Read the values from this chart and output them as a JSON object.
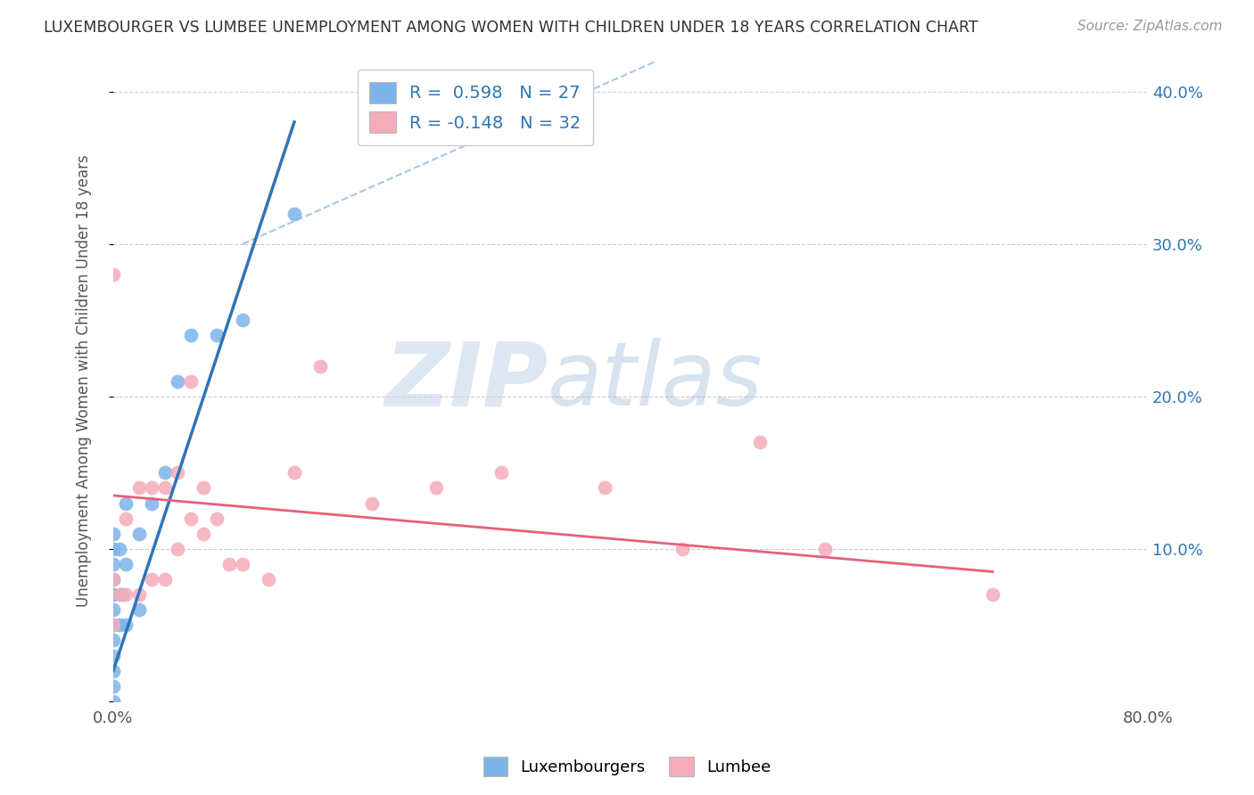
{
  "title": "LUXEMBOURGER VS LUMBEE UNEMPLOYMENT AMONG WOMEN WITH CHILDREN UNDER 18 YEARS CORRELATION CHART",
  "source": "Source: ZipAtlas.com",
  "ylabel": "Unemployment Among Women with Children Under 18 years",
  "xlabel": "",
  "legend_bottom": [
    "Luxembourgers",
    "Lumbee"
  ],
  "luxembourger_R": 0.598,
  "luxembourger_N": 27,
  "lumbee_R": -0.148,
  "lumbee_N": 32,
  "xlim": [
    0.0,
    0.8
  ],
  "ylim": [
    0.0,
    0.42
  ],
  "x_ticks": [
    0.0,
    0.1,
    0.2,
    0.3,
    0.4,
    0.5,
    0.6,
    0.7,
    0.8
  ],
  "x_tick_labels": [
    "0.0%",
    "",
    "",
    "",
    "",
    "",
    "",
    "",
    "80.0%"
  ],
  "y_ticks": [
    0.0,
    0.1,
    0.2,
    0.3,
    0.4
  ],
  "y_tick_labels_right": [
    "",
    "10.0%",
    "20.0%",
    "30.0%",
    "40.0%"
  ],
  "blue_color": "#7EB4EA",
  "pink_color": "#F4ACBA",
  "blue_line_color": "#2E75B6",
  "pink_line_color": "#E8607A",
  "dashed_line_color": "#A8C8E8",
  "background_color": "#FFFFFF",
  "watermark_zip": "ZIP",
  "watermark_atlas": "atlas",
  "luxembourger_points_x": [
    0.0,
    0.0,
    0.0,
    0.0,
    0.0,
    0.0,
    0.0,
    0.0,
    0.0,
    0.0,
    0.0,
    0.0,
    0.005,
    0.005,
    0.007,
    0.01,
    0.01,
    0.01,
    0.02,
    0.02,
    0.03,
    0.04,
    0.05,
    0.06,
    0.08,
    0.1,
    0.14
  ],
  "luxembourger_points_y": [
    0.0,
    0.01,
    0.02,
    0.03,
    0.04,
    0.05,
    0.06,
    0.07,
    0.08,
    0.09,
    0.1,
    0.11,
    0.05,
    0.1,
    0.07,
    0.05,
    0.09,
    0.13,
    0.06,
    0.11,
    0.13,
    0.15,
    0.21,
    0.24,
    0.24,
    0.25,
    0.32
  ],
  "lumbee_points_x": [
    0.0,
    0.0,
    0.0,
    0.005,
    0.01,
    0.01,
    0.02,
    0.02,
    0.03,
    0.03,
    0.04,
    0.04,
    0.05,
    0.05,
    0.06,
    0.06,
    0.07,
    0.07,
    0.08,
    0.09,
    0.1,
    0.12,
    0.14,
    0.16,
    0.2,
    0.25,
    0.3,
    0.38,
    0.44,
    0.5,
    0.55,
    0.68
  ],
  "lumbee_points_y": [
    0.05,
    0.08,
    0.28,
    0.07,
    0.07,
    0.12,
    0.07,
    0.14,
    0.08,
    0.14,
    0.08,
    0.14,
    0.1,
    0.15,
    0.12,
    0.21,
    0.11,
    0.14,
    0.12,
    0.09,
    0.09,
    0.08,
    0.15,
    0.22,
    0.13,
    0.14,
    0.15,
    0.14,
    0.1,
    0.17,
    0.1,
    0.07
  ],
  "blue_line_x": [
    0.0,
    0.14
  ],
  "blue_line_y": [
    0.02,
    0.38
  ],
  "pink_line_x": [
    0.0,
    0.68
  ],
  "pink_line_y": [
    0.135,
    0.085
  ],
  "dashed_line_x": [
    0.1,
    0.42
  ],
  "dashed_line_y": [
    0.3,
    0.42
  ]
}
